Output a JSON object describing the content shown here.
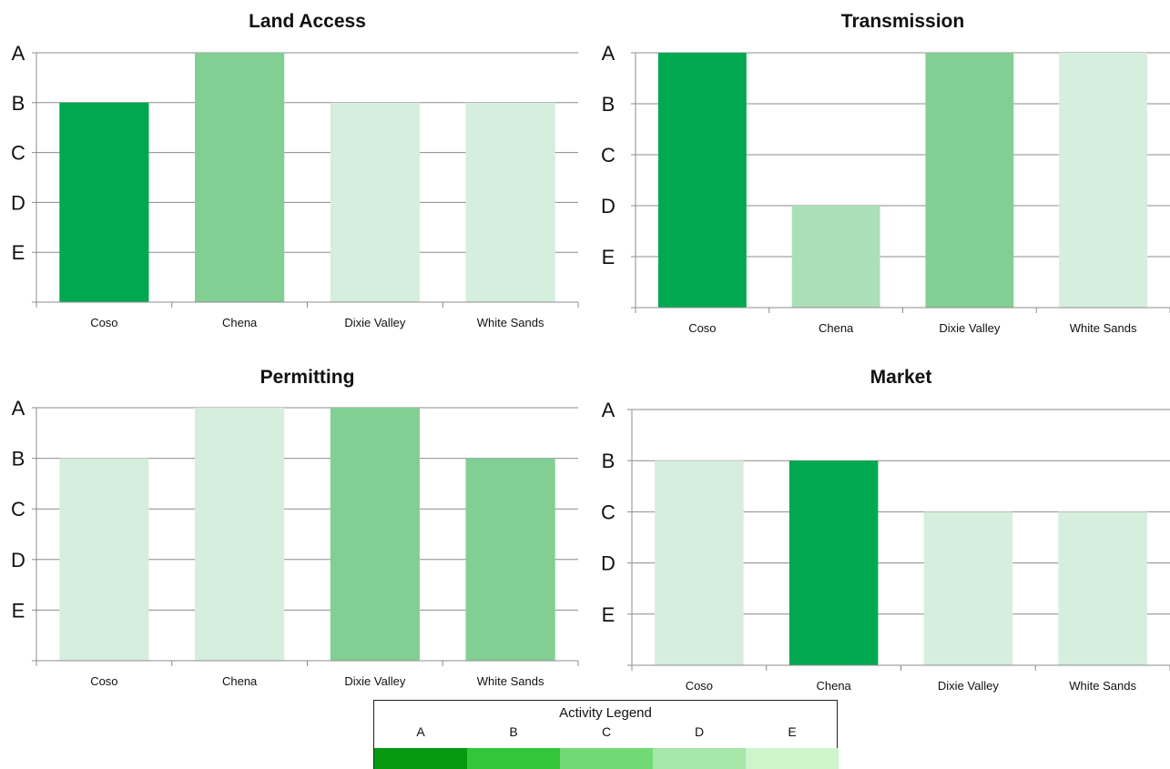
{
  "chart_data": [
    {
      "type": "bar",
      "title": "Land Access",
      "categories": [
        "Coso",
        "Chena",
        "Dixie Valley",
        "White Sands"
      ],
      "y_tick_labels": [
        "A",
        "B",
        "C",
        "D",
        "E"
      ],
      "grades": [
        "B",
        "A",
        "B",
        "B"
      ],
      "values": [
        4,
        5,
        4,
        4
      ],
      "colors": [
        "#00a84f",
        "#82cf94",
        "#d6eedd",
        "#d6eedd"
      ]
    },
    {
      "type": "bar",
      "title": "Transmission",
      "categories": [
        "Coso",
        "Chena",
        "Dixie Valley",
        "White Sands"
      ],
      "y_tick_labels": [
        "A",
        "B",
        "C",
        "D",
        "E"
      ],
      "grades": [
        "A",
        "D",
        "A",
        "A"
      ],
      "values": [
        5,
        2,
        5,
        5
      ],
      "colors": [
        "#00a84f",
        "#acdfb6",
        "#82cf94",
        "#d6eedd"
      ]
    },
    {
      "type": "bar",
      "title": "Permitting",
      "categories": [
        "Coso",
        "Chena",
        "Dixie Valley",
        "White Sands"
      ],
      "y_tick_labels": [
        "A",
        "B",
        "C",
        "D",
        "E"
      ],
      "grades": [
        "B",
        "A",
        "A",
        "B"
      ],
      "values": [
        4,
        5,
        5,
        4
      ],
      "colors": [
        "#d6eedd",
        "#d6eedd",
        "#82cf94",
        "#82cf94"
      ]
    },
    {
      "type": "bar",
      "title": "Market",
      "categories": [
        "Coso",
        "Chena",
        "Dixie Valley",
        "White Sands"
      ],
      "y_tick_labels": [
        "A",
        "B",
        "C",
        "D",
        "E"
      ],
      "grades": [
        "B",
        "B",
        "C",
        "C"
      ],
      "values": [
        4,
        4,
        3,
        3
      ],
      "colors": [
        "#d6eedd",
        "#00a84f",
        "#d6eedd",
        "#d6eedd"
      ]
    }
  ],
  "legend": {
    "title": "Activity Legend",
    "items": [
      {
        "label": "A",
        "color": "#069a10"
      },
      {
        "label": "B",
        "color": "#33c53a"
      },
      {
        "label": "C",
        "color": "#72da74"
      },
      {
        "label": "D",
        "color": "#a6e6a8"
      },
      {
        "label": "E",
        "color": "#ccf5cc"
      }
    ]
  },
  "styles": {
    "gridline_color": "#8c8c8c",
    "axis_color": "#8c8c8c",
    "text_color": "#111111"
  }
}
